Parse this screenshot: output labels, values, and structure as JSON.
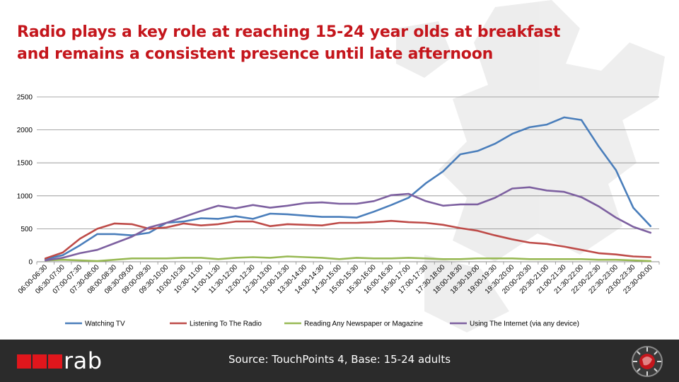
{
  "title": {
    "line1": "Radio plays a key role at reaching 15-24 year olds at breakfast",
    "line2": "and remains a consistent presence until late afternoon"
  },
  "footer": {
    "logo_text": "rab",
    "source": "Source: TouchPoints 4, Base: 15-24 adults"
  },
  "colors": {
    "title": "#c4161c",
    "footer_bg": "#2b2b2b",
    "logo_red": "#e0161c",
    "tv": "#4a7ebb",
    "radio": "#be4b48",
    "newspaper": "#98b954",
    "internet": "#7d60a0"
  },
  "chart_data": {
    "type": "line",
    "ylim": [
      0,
      2500
    ],
    "yticks": [
      0,
      500,
      1000,
      1500,
      2000,
      2500
    ],
    "grid": true,
    "legend_position": "bottom",
    "categories": [
      "06:00-06:30",
      "06:30-07:00",
      "07:00-07:30",
      "07:30-08:00",
      "08:00-08:30",
      "08:30-09:00",
      "09:00-09:30",
      "09:30-10:00",
      "10:00-10:30",
      "10:30-11:00",
      "11:00-11:30",
      "11:30-12:00",
      "12:00-12:30",
      "12:30-13:00",
      "13:00-13:30",
      "13:30-14:00",
      "14:00-14:30",
      "14:30-15:00",
      "15:00-15:30",
      "15:30-16:00",
      "16:00-16:30",
      "16:30-17:00",
      "17:00-17:30",
      "17:30-18:00",
      "18:00-18:30",
      "18:30-19:00",
      "19:00-19:30",
      "19:30-20:00",
      "20:00-20:30",
      "20:30-21:00",
      "21:00-21:30",
      "21:30-22:00",
      "22:00-22:30",
      "22:30-23:00",
      "23:00-23:30",
      "23:30-00:00"
    ],
    "series": [
      {
        "name": "Watching TV",
        "color": "#4a7ebb",
        "values": [
          40,
          100,
          250,
          420,
          420,
          400,
          440,
          590,
          610,
          660,
          650,
          690,
          650,
          730,
          720,
          700,
          680,
          680,
          670,
          760,
          860,
          970,
          1190,
          1370,
          1630,
          1680,
          1790,
          1940,
          2040,
          2080,
          2190,
          2150,
          1750,
          1390,
          820,
          540
        ]
      },
      {
        "name": "Listening To The Radio",
        "color": "#be4b48",
        "values": [
          50,
          140,
          350,
          500,
          580,
          570,
          500,
          520,
          580,
          550,
          570,
          610,
          610,
          540,
          570,
          560,
          550,
          590,
          590,
          600,
          620,
          600,
          590,
          560,
          510,
          470,
          400,
          340,
          290,
          270,
          230,
          180,
          130,
          110,
          80,
          70
        ]
      },
      {
        "name": "Reading Any Newspaper or Magazine",
        "color": "#98b954",
        "values": [
          20,
          30,
          20,
          10,
          30,
          50,
          50,
          50,
          60,
          60,
          40,
          60,
          70,
          60,
          80,
          70,
          60,
          40,
          60,
          50,
          50,
          60,
          50,
          40,
          40,
          50,
          50,
          50,
          40,
          40,
          40,
          40,
          30,
          30,
          20,
          10
        ]
      },
      {
        "name": "Using The Internet (via any device)",
        "color": "#7d60a0",
        "values": [
          20,
          60,
          130,
          180,
          280,
          380,
          520,
          590,
          680,
          770,
          850,
          810,
          860,
          820,
          850,
          890,
          900,
          880,
          880,
          920,
          1010,
          1030,
          920,
          850,
          870,
          870,
          970,
          1110,
          1130,
          1080,
          1060,
          980,
          840,
          670,
          530,
          440
        ]
      }
    ]
  }
}
